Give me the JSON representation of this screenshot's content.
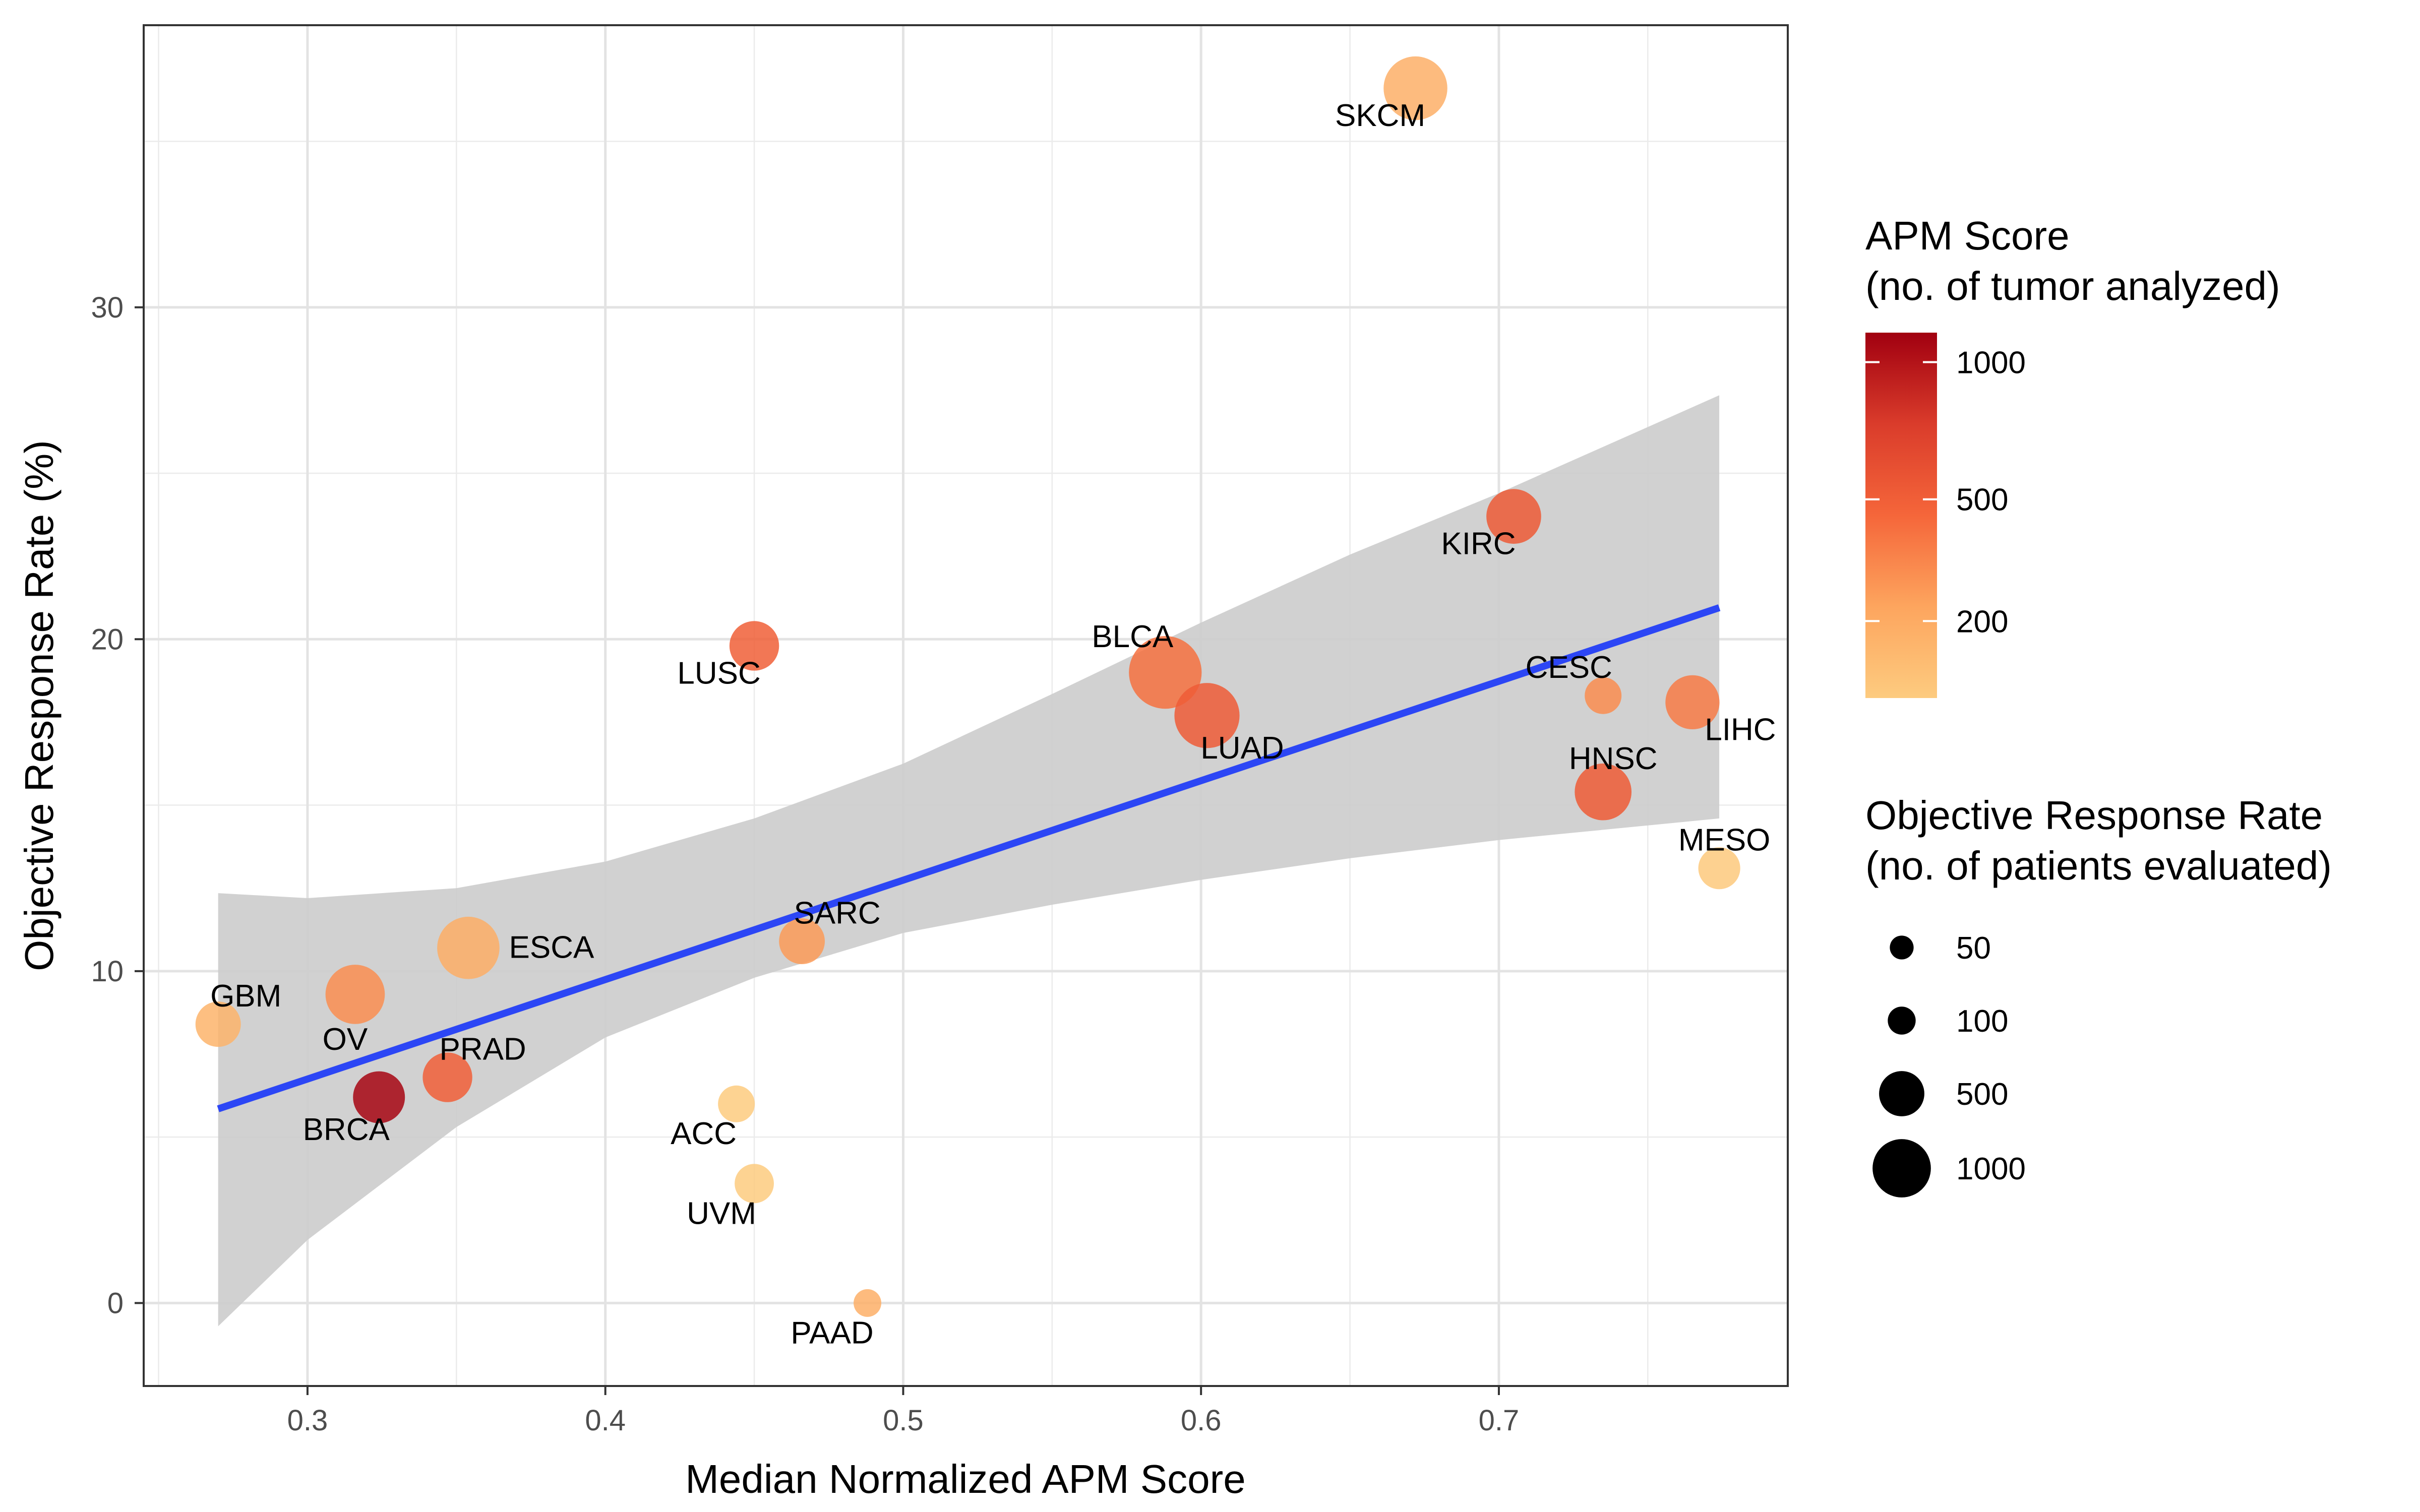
{
  "chart_data": {
    "type": "scatter",
    "title": "",
    "xlabel": "Median Normalized APM Score",
    "ylabel": "Objective Response Rate (%)",
    "xlim": [
      0.245,
      0.797
    ],
    "ylim": [
      -2.5,
      38.5
    ],
    "x_ticks": [
      0.3,
      0.4,
      0.5,
      0.6,
      0.7
    ],
    "x_tick_labels": [
      "0.3",
      "0.4",
      "0.5",
      "0.6",
      "0.7"
    ],
    "y_ticks": [
      0,
      10,
      20,
      30
    ],
    "y_tick_labels": [
      "0",
      "10",
      "20",
      "30"
    ],
    "grid": true,
    "legend_position": "right",
    "points": [
      {
        "label": "SKCM",
        "x": 0.672,
        "y": 36.6,
        "tumors": 180,
        "patients": 850
      },
      {
        "label": "KIRC",
        "x": 0.705,
        "y": 23.7,
        "tumors": 530,
        "patients": 560
      },
      {
        "label": "LUSC",
        "x": 0.45,
        "y": 19.8,
        "tumors": 500,
        "patients": 420
      },
      {
        "label": "BLCA",
        "x": 0.588,
        "y": 19.0,
        "tumors": 410,
        "patients": 1200
      },
      {
        "label": "LUAD",
        "x": 0.602,
        "y": 17.7,
        "tumors": 515,
        "patients": 900
      },
      {
        "label": "CESC",
        "x": 0.735,
        "y": 18.3,
        "tumors": 305,
        "patients": 160
      },
      {
        "label": "LIHC",
        "x": 0.765,
        "y": 18.1,
        "tumors": 370,
        "patients": 540
      },
      {
        "label": "HNSC",
        "x": 0.735,
        "y": 15.4,
        "tumors": 520,
        "patients": 620
      },
      {
        "label": "MESO",
        "x": 0.774,
        "y": 13.1,
        "tumors": 87,
        "patients": 250
      },
      {
        "label": "SARC",
        "x": 0.466,
        "y": 10.9,
        "tumors": 260,
        "patients": 330
      },
      {
        "label": "ESCA",
        "x": 0.354,
        "y": 10.7,
        "tumors": 185,
        "patients": 800
      },
      {
        "label": "OV",
        "x": 0.316,
        "y": 9.3,
        "tumors": 300,
        "patients": 700
      },
      {
        "label": "GBM",
        "x": 0.27,
        "y": 8.4,
        "tumors": 160,
        "patients": 320
      },
      {
        "label": "PRAD",
        "x": 0.347,
        "y": 6.8,
        "tumors": 495,
        "patients": 420
      },
      {
        "label": "BRCA",
        "x": 0.324,
        "y": 6.2,
        "tumors": 1090,
        "patients": 480
      },
      {
        "label": "ACC",
        "x": 0.444,
        "y": 6.0,
        "tumors": 80,
        "patients": 160
      },
      {
        "label": "UVM",
        "x": 0.45,
        "y": 3.6,
        "tumors": 80,
        "patients": 200
      },
      {
        "label": "PAAD",
        "x": 0.488,
        "y": 0.0,
        "tumors": 180,
        "patients": 50
      }
    ],
    "trend_line": {
      "x": [
        0.27,
        0.774
      ],
      "y": [
        5.85,
        20.95
      ],
      "color": "#2C46F5"
    },
    "confidence_band": {
      "x": [
        0.27,
        0.3,
        0.35,
        0.4,
        0.45,
        0.5,
        0.55,
        0.6,
        0.65,
        0.7,
        0.774
      ],
      "lower": [
        -0.7,
        1.9,
        5.3,
        8.0,
        9.8,
        11.15,
        12.0,
        12.75,
        13.4,
        13.95,
        14.6
      ],
      "upper": [
        12.35,
        12.2,
        12.5,
        13.3,
        14.6,
        16.25,
        18.35,
        20.5,
        22.55,
        24.4,
        27.35
      ],
      "color": "#CCCCCC"
    },
    "color_legend": {
      "title_line1": "APM Score",
      "title_line2": "(no. of tumor analyzed)",
      "ticks": [
        1000,
        500,
        200
      ],
      "tick_labels": [
        "1000",
        "500",
        "200"
      ],
      "range": [
        80,
        1130
      ],
      "scale": "sqrt",
      "colors": [
        "#FDCB7F",
        "#FDA55E",
        "#F5663A",
        "#DA3C2B",
        "#A10010"
      ]
    },
    "size_legend": {
      "title_line1": "Objective Response Rate",
      "title_line2": "(no. of patients evaluated)",
      "values": [
        50,
        100,
        500,
        1000
      ],
      "labels": [
        "50",
        "100",
        "500",
        "1000"
      ]
    }
  }
}
